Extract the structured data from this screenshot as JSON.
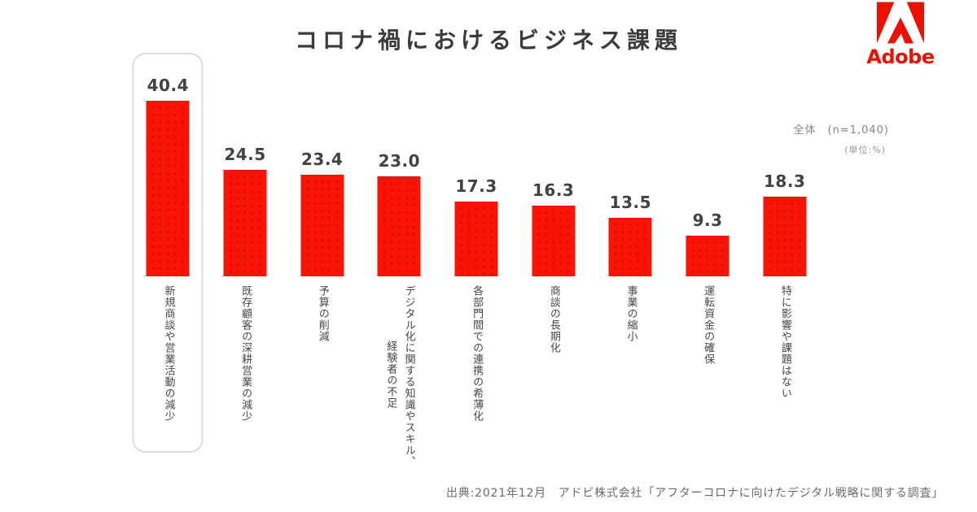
{
  "page": {
    "title": "コロナ禍におけるビジネス課題",
    "sample_note": "全体　(n=1,040)",
    "unit_note": "(単位:%)",
    "source": "出典:2021年12月　アドビ株式会社「アフターコロナに向けたデジタル戦略に関する調査」"
  },
  "logo": {
    "brand": "Adobe",
    "mark": "adobe-a-icon",
    "color": "#EB1000"
  },
  "chart_data": {
    "type": "bar",
    "title": "コロナ禍におけるビジネス課題",
    "categories": [
      "新規商談や営業活動の減少",
      "既存顧客の深耕営業の減少",
      "予算の削減",
      "デジタル化に関する知識やスキル、経験者の不足",
      "各部門間での連携の希薄化",
      "商談の長期化",
      "事業の縮小",
      "運転資金の確保",
      "特に影響や課題はない"
    ],
    "values": [
      40.4,
      24.5,
      23.4,
      23.0,
      17.3,
      16.3,
      13.5,
      9.3,
      18.3
    ],
    "unit": "%",
    "sample_size": "n=1,040",
    "xlabel": "",
    "ylabel": "",
    "ylim": [
      0,
      45
    ],
    "grid": false,
    "legend": false,
    "value_labels_shown": true,
    "highlighted_index": 0,
    "bar_color": "#FA1405",
    "highlight_outline_color": "#dcdcdc"
  },
  "bars": [
    {
      "label_lines": [
        "新規商談や営業活動の減少"
      ],
      "highlighted": true
    },
    {
      "label_lines": [
        "既存顧客の深耕営業の減少"
      ],
      "highlighted": false
    },
    {
      "label_lines": [
        "予算の削減"
      ],
      "highlighted": false
    },
    {
      "label_lines": [
        "デジタル化に関する知識やスキル、",
        "経験者の不足"
      ],
      "highlighted": false
    },
    {
      "label_lines": [
        "各部門間での連携の希薄化"
      ],
      "highlighted": false
    },
    {
      "label_lines": [
        "商談の長期化"
      ],
      "highlighted": false
    },
    {
      "label_lines": [
        "事業の縮小"
      ],
      "highlighted": false
    },
    {
      "label_lines": [
        "運転資金の確保"
      ],
      "highlighted": false
    },
    {
      "label_lines": [
        "特に影響や課題はない"
      ],
      "highlighted": false
    }
  ]
}
